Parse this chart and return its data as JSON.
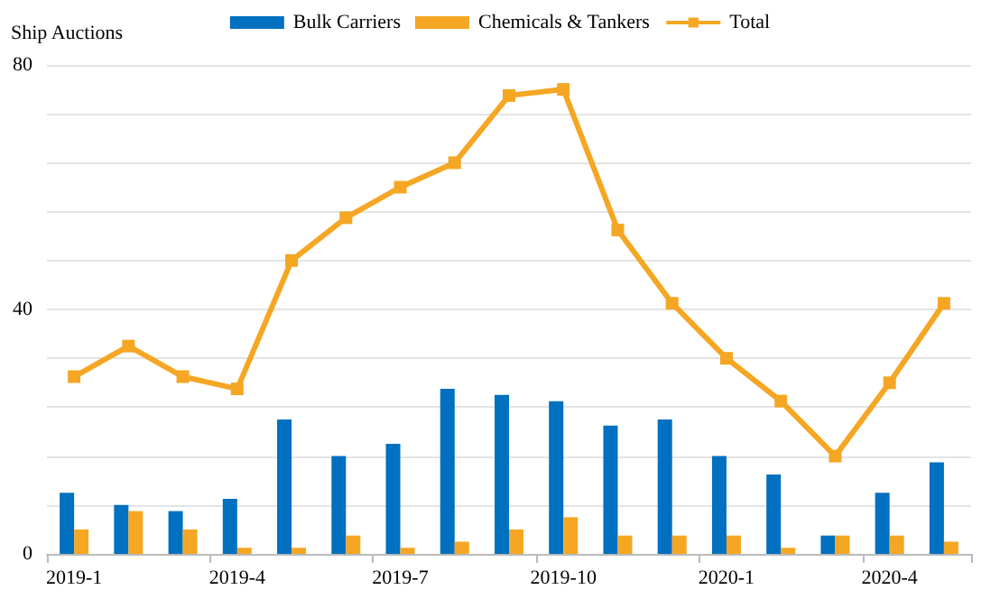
{
  "chart_data": {
    "type": "bar",
    "ylabel": "Ship Auctions",
    "categories": [
      "2019-1",
      null,
      null,
      "2019-4",
      null,
      null,
      "2019-7",
      null,
      null,
      "2019-10",
      null,
      null,
      "2020-1",
      null,
      null,
      "2020-4",
      null
    ],
    "series": [
      {
        "name": "Bulk Carriers",
        "color": "#0070c0",
        "values": [
          10,
          8,
          7,
          9,
          22,
          16,
          18,
          27,
          26,
          25,
          21,
          22,
          16,
          13,
          3,
          10,
          15
        ]
      },
      {
        "name": "Chemicals & Tankers",
        "color": "#f5a623",
        "values": [
          4,
          7,
          4,
          1,
          1,
          3,
          1,
          2,
          4,
          6,
          3,
          3,
          3,
          1,
          3,
          3,
          2
        ]
      },
      {
        "name": "Total",
        "type": "line",
        "color": "#f5a623",
        "marker": "square",
        "values": [
          29,
          34,
          29,
          27,
          48,
          55,
          60,
          64,
          75,
          76,
          53,
          41,
          32,
          25,
          16,
          28,
          41
        ]
      }
    ],
    "ylim": [
      0,
      80
    ],
    "yticks": [
      0,
      {
        "value": 8,
        "label": null
      },
      {
        "value": 16,
        "label": null
      },
      {
        "value": 24,
        "label": null
      },
      {
        "value": 32,
        "label": null
      },
      40,
      {
        "value": 48,
        "label": null
      },
      {
        "value": 56,
        "label": null
      },
      {
        "value": 64,
        "label": null
      },
      {
        "value": 72,
        "label": null
      },
      80
    ],
    "grid": "y",
    "legend": "top"
  }
}
